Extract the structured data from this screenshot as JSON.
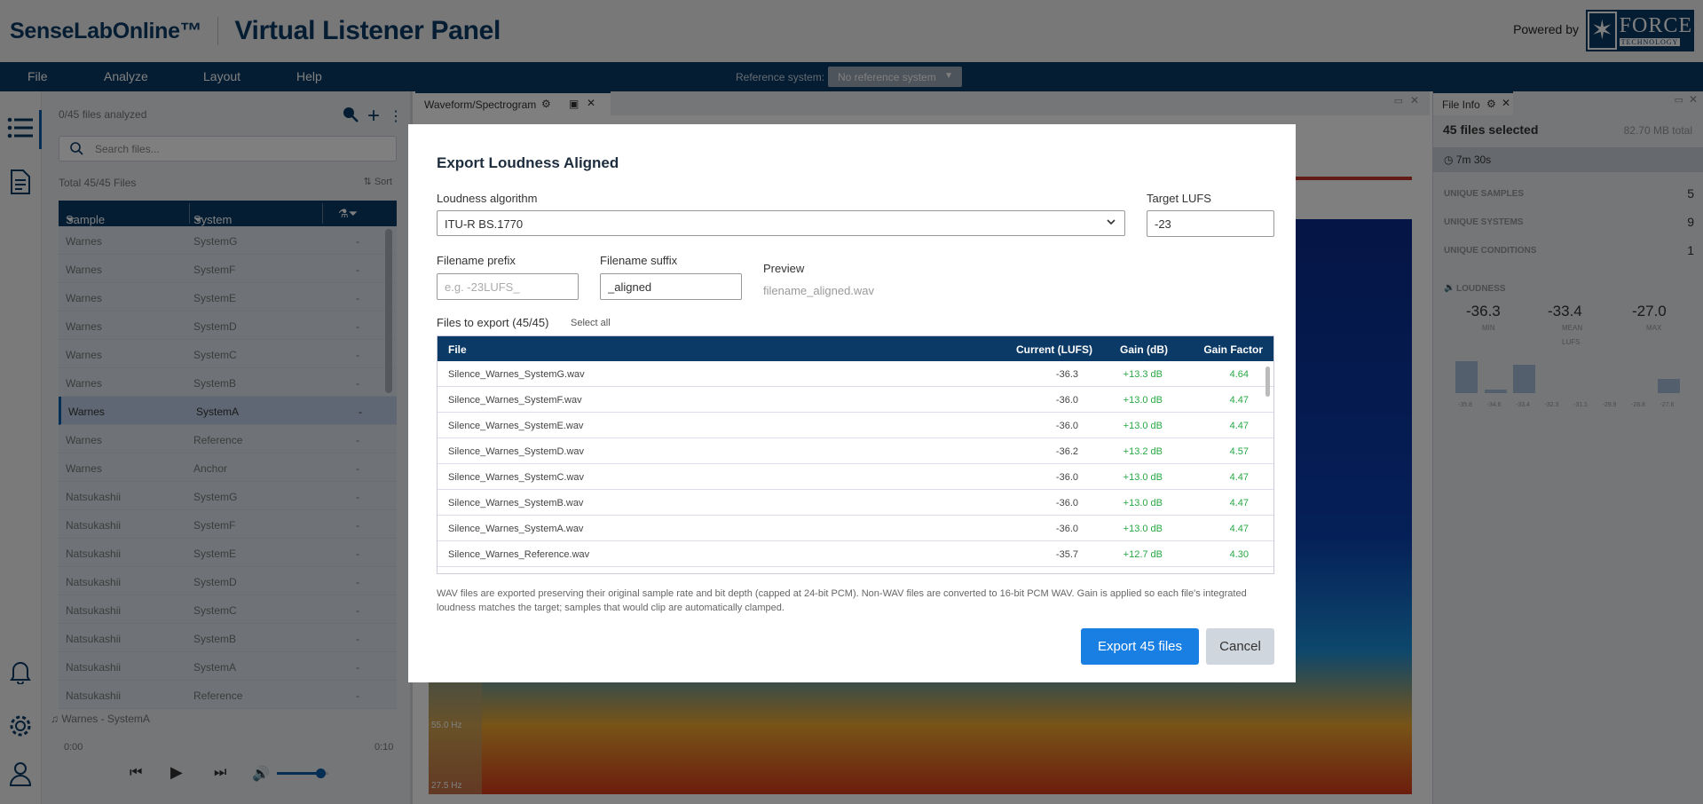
{
  "header": {
    "brand": "SenseLabOnline™",
    "title": "Virtual Listener Panel",
    "powered_by": "Powered by",
    "logo_text": "FORCE",
    "logo_sub": "TECHNOLOGY"
  },
  "menubar": {
    "items": [
      "File",
      "Analyze",
      "Layout",
      "Help"
    ],
    "reference_label": "Reference system:",
    "reference_value": "No reference system"
  },
  "files_panel": {
    "analyzed": "0/45 files analyzed",
    "search_placeholder": "Search files...",
    "total": "Total 45/45 Files",
    "sort": "Sort",
    "col_sample": "Sample",
    "col_system": "System",
    "rows": [
      {
        "sample": "Warnes",
        "system": "SystemG"
      },
      {
        "sample": "Warnes",
        "system": "SystemF"
      },
      {
        "sample": "Warnes",
        "system": "SystemE"
      },
      {
        "sample": "Warnes",
        "system": "SystemD"
      },
      {
        "sample": "Warnes",
        "system": "SystemC"
      },
      {
        "sample": "Warnes",
        "system": "SystemB"
      },
      {
        "sample": "Warnes",
        "system": "SystemA"
      },
      {
        "sample": "Warnes",
        "system": "Reference"
      },
      {
        "sample": "Warnes",
        "system": "Anchor"
      },
      {
        "sample": "Natsukashii",
        "system": "SystemG"
      },
      {
        "sample": "Natsukashii",
        "system": "SystemF"
      },
      {
        "sample": "Natsukashii",
        "system": "SystemE"
      },
      {
        "sample": "Natsukashii",
        "system": "SystemD"
      },
      {
        "sample": "Natsukashii",
        "system": "SystemC"
      },
      {
        "sample": "Natsukashii",
        "system": "SystemB"
      },
      {
        "sample": "Natsukashii",
        "system": "SystemA"
      },
      {
        "sample": "Natsukashii",
        "system": "Reference"
      }
    ],
    "dash": "-",
    "player_track": "Warnes - SystemA",
    "time_start": "0:00",
    "time_end": "0:10",
    "volume_level": 0.85
  },
  "wave_panel": {
    "tab": "Waveform/Spectrogram",
    "hz_55": "55.0 Hz",
    "hz_27": "27.5 Hz"
  },
  "info_panel": {
    "tab": "File Info",
    "selected": "45 files selected",
    "size": "82.70 MB total",
    "duration": "7m 30s",
    "stats": [
      {
        "label": "UNIQUE SAMPLES",
        "value": "5"
      },
      {
        "label": "UNIQUE SYSTEMS",
        "value": "9"
      },
      {
        "label": "UNIQUE CONDITIONS",
        "value": "1"
      }
    ],
    "loudness_title": "LOUDNESS",
    "min": "-36.3",
    "mean": "-33.4",
    "max": "-27.0",
    "min_label": "MIN",
    "mean_label": "MEAN",
    "max_label": "MAX",
    "unit": "LUFS",
    "hist_ticks": [
      "-35.8",
      "-34.6",
      "-33.4",
      "-32.3",
      "-31.1",
      "-29.9",
      "-28.8",
      "-27.6"
    ],
    "hist_values": [
      1.0,
      0.1,
      0.9,
      0,
      0,
      0,
      0,
      0.45
    ]
  },
  "modal": {
    "title": "Export Loudness Aligned",
    "algo_label": "Loudness algorithm",
    "algo_value": "ITU-R BS.1770",
    "target_label": "Target LUFS",
    "target_value": "-23",
    "prefix_label": "Filename prefix",
    "prefix_placeholder": "e.g. -23LUFS_",
    "suffix_label": "Filename suffix",
    "suffix_value": "_aligned",
    "preview_label": "Preview",
    "preview_value": "filename_aligned.wav",
    "files_label": "Files to export (45/45)",
    "select_all": "Select all",
    "col_file": "File",
    "col_current": "Current (LUFS)",
    "col_gain": "Gain (dB)",
    "col_factor": "Gain Factor",
    "rows": [
      {
        "file": "Silence_Warnes_SystemG.wav",
        "current": "-36.3",
        "gain": "+13.3 dB",
        "factor": "4.64"
      },
      {
        "file": "Silence_Warnes_SystemF.wav",
        "current": "-36.0",
        "gain": "+13.0 dB",
        "factor": "4.47"
      },
      {
        "file": "Silence_Warnes_SystemE.wav",
        "current": "-36.0",
        "gain": "+13.0 dB",
        "factor": "4.47"
      },
      {
        "file": "Silence_Warnes_SystemD.wav",
        "current": "-36.2",
        "gain": "+13.2 dB",
        "factor": "4.57"
      },
      {
        "file": "Silence_Warnes_SystemC.wav",
        "current": "-36.0",
        "gain": "+13.0 dB",
        "factor": "4.47"
      },
      {
        "file": "Silence_Warnes_SystemB.wav",
        "current": "-36.0",
        "gain": "+13.0 dB",
        "factor": "4.47"
      },
      {
        "file": "Silence_Warnes_SystemA.wav",
        "current": "-36.0",
        "gain": "+13.0 dB",
        "factor": "4.47"
      },
      {
        "file": "Silence_Warnes_Reference.wav",
        "current": "-35.7",
        "gain": "+12.7 dB",
        "factor": "4.30"
      }
    ],
    "note": "WAV files are exported preserving their original sample rate and bit depth (capped at 24-bit PCM). Non-WAV files are converted to 16-bit PCM WAV. Gain is applied so each file's integrated loudness matches the target; samples that would clip are automatically clamped.",
    "export_button": "Export 45 files",
    "cancel_button": "Cancel"
  },
  "colors": {
    "navy": "#0b3a66",
    "accent": "#1a7fe3",
    "gain_green": "#27a844"
  }
}
